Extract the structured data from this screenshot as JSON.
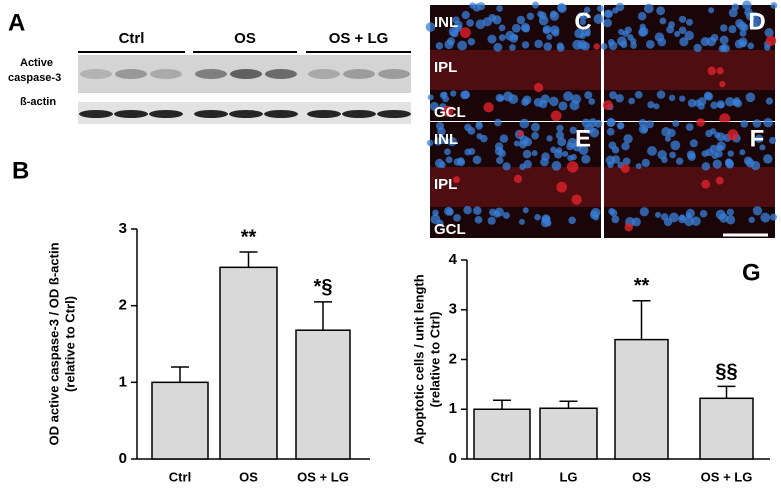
{
  "blot": {
    "label": "A",
    "groups": [
      "Ctrl",
      "OS",
      "OS + LG"
    ],
    "rows": [
      [
        "Active",
        "caspase-3"
      ],
      [
        "ß-actin"
      ]
    ]
  },
  "micrographs": {
    "panels": [
      {
        "label": "C",
        "layers": [
          "INL",
          "IPL",
          "GCL"
        ]
      },
      {
        "label": "D"
      },
      {
        "label": "E",
        "layers": [
          "INL",
          "IPL",
          "GCL"
        ]
      },
      {
        "label": "F"
      }
    ]
  },
  "chart_data": [
    {
      "type": "bar",
      "panel": "B",
      "ylabel": [
        "OD active caspase-3 / OD ß-actin",
        "(relative to Ctrl)"
      ],
      "categories": [
        "Ctrl",
        "OS",
        "OS + LG"
      ],
      "values": [
        1.0,
        2.5,
        1.68
      ],
      "errors": [
        0.2,
        0.2,
        0.37
      ],
      "annotations": [
        null,
        "**",
        "*§"
      ],
      "color": "#d9d9d9",
      "ylim": [
        0,
        3
      ],
      "yticks": [
        0,
        1,
        2,
        3
      ]
    },
    {
      "type": "bar",
      "panel": "G",
      "ylabel": [
        "Apoptotic cells / unit length",
        "(relative to Ctrl)"
      ],
      "categories": [
        "Ctrl",
        "LG",
        "OS",
        "OS + LG"
      ],
      "values": [
        1.0,
        1.02,
        2.4,
        1.22
      ],
      "errors": [
        0.18,
        0.14,
        0.78,
        0.24
      ],
      "annotations": [
        null,
        null,
        "**",
        "§§"
      ],
      "color": "#d9d9d9",
      "ylim": [
        0,
        4
      ],
      "yticks": [
        0,
        1,
        2,
        3,
        4
      ]
    }
  ]
}
